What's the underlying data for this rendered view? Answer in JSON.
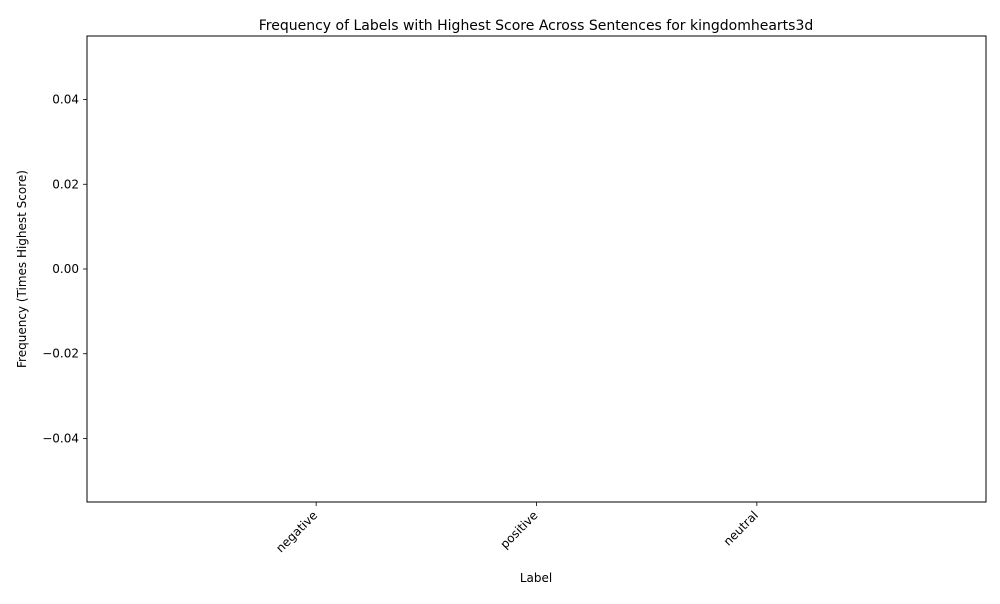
{
  "chart_data": {
    "type": "bar",
    "title": "Frequency of Labels with Highest Score Across Sentences for kingdomhearts3d",
    "xlabel": "Label",
    "ylabel": "Frequency (Times Highest Score)",
    "categories": [
      "negative",
      "positive",
      "neutral"
    ],
    "values": [
      0,
      0,
      0
    ],
    "ylim": [
      -0.055,
      0.055
    ],
    "yticks": [
      -0.04,
      -0.02,
      0.0,
      0.02,
      0.04
    ],
    "ytick_labels": [
      "−0.04",
      "−0.02",
      "0.00",
      "0.02",
      "0.04"
    ],
    "grid": false,
    "legend": "none"
  }
}
